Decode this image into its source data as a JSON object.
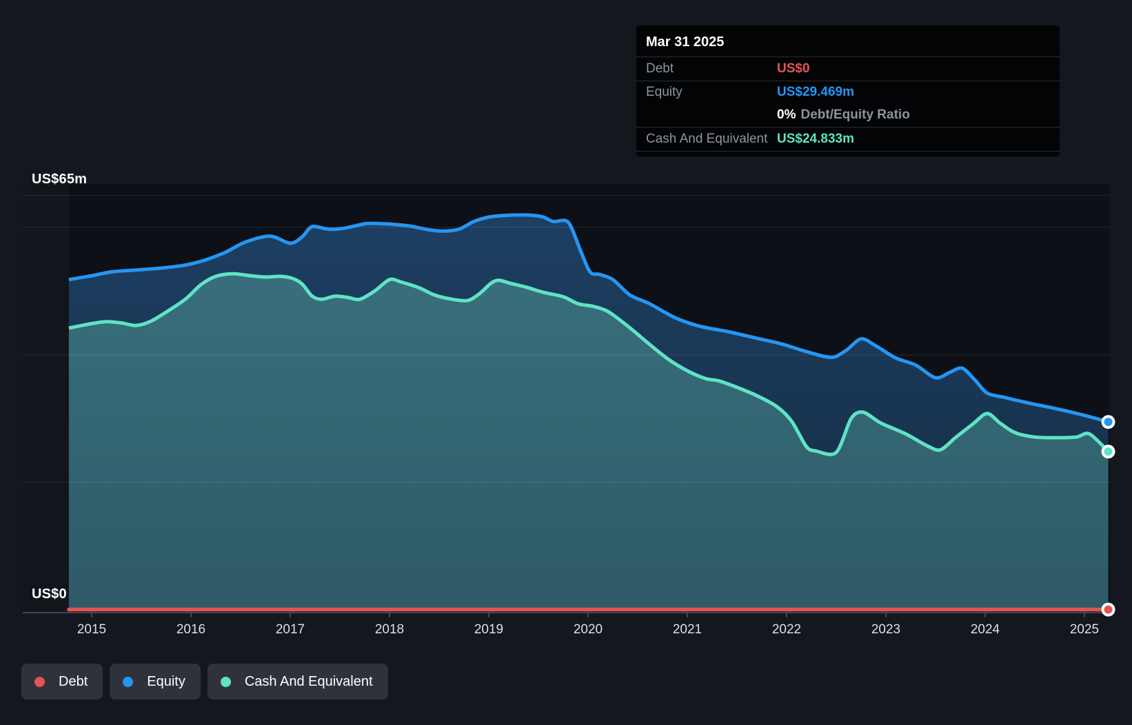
{
  "chart_data": {
    "type": "area",
    "x_axis": {
      "labels": [
        "2015",
        "2016",
        "2017",
        "2018",
        "2019",
        "2020",
        "2021",
        "2022",
        "2023",
        "2024",
        "2025"
      ]
    },
    "y_axis": {
      "max_label": "US$65m",
      "zero_label": "US$0",
      "range": [
        0,
        65
      ],
      "gridline_values": [
        65,
        60,
        40,
        20
      ]
    },
    "x_range": [
      2014.77,
      2025.24
    ],
    "series": [
      {
        "name": "Debt",
        "color": "#e25553",
        "points": [
          [
            2014.77,
            0
          ],
          [
            2025.24,
            0
          ]
        ]
      },
      {
        "name": "Equity",
        "color": "#2596f3",
        "points": [
          [
            2014.77,
            51.8
          ],
          [
            2015.0,
            52.4
          ],
          [
            2015.2,
            53.0
          ],
          [
            2015.45,
            53.3
          ],
          [
            2015.7,
            53.6
          ],
          [
            2015.95,
            54.1
          ],
          [
            2016.15,
            54.9
          ],
          [
            2016.35,
            56.1
          ],
          [
            2016.55,
            57.7
          ],
          [
            2016.8,
            58.6
          ],
          [
            2017.0,
            57.5
          ],
          [
            2017.12,
            58.5
          ],
          [
            2017.22,
            60.1
          ],
          [
            2017.38,
            59.7
          ],
          [
            2017.52,
            59.8
          ],
          [
            2017.65,
            60.2
          ],
          [
            2017.78,
            60.6
          ],
          [
            2018.0,
            60.5
          ],
          [
            2018.2,
            60.2
          ],
          [
            2018.4,
            59.6
          ],
          [
            2018.55,
            59.4
          ],
          [
            2018.7,
            59.7
          ],
          [
            2018.85,
            60.9
          ],
          [
            2019.0,
            61.6
          ],
          [
            2019.2,
            61.9
          ],
          [
            2019.42,
            61.9
          ],
          [
            2019.55,
            61.6
          ],
          [
            2019.65,
            60.9
          ],
          [
            2019.8,
            60.8
          ],
          [
            2019.92,
            56.5
          ],
          [
            2020.02,
            53.0
          ],
          [
            2020.12,
            52.6
          ],
          [
            2020.25,
            51.8
          ],
          [
            2020.42,
            49.4
          ],
          [
            2020.62,
            48.0
          ],
          [
            2020.88,
            45.8
          ],
          [
            2021.12,
            44.5
          ],
          [
            2021.42,
            43.6
          ],
          [
            2021.7,
            42.6
          ],
          [
            2021.95,
            41.7
          ],
          [
            2022.2,
            40.5
          ],
          [
            2022.45,
            39.6
          ],
          [
            2022.6,
            40.7
          ],
          [
            2022.75,
            42.5
          ],
          [
            2022.9,
            41.4
          ],
          [
            2023.1,
            39.5
          ],
          [
            2023.3,
            38.4
          ],
          [
            2023.5,
            36.4
          ],
          [
            2023.65,
            37.3
          ],
          [
            2023.77,
            37.9
          ],
          [
            2023.9,
            36.0
          ],
          [
            2024.02,
            34.0
          ],
          [
            2024.2,
            33.3
          ],
          [
            2024.45,
            32.4
          ],
          [
            2024.7,
            31.6
          ],
          [
            2024.95,
            30.7
          ],
          [
            2025.1,
            30.1
          ],
          [
            2025.24,
            29.469
          ]
        ]
      },
      {
        "name": "Cash And Equivalent",
        "color": "#5fe3c5",
        "points": [
          [
            2014.77,
            44.2
          ],
          [
            2015.0,
            44.9
          ],
          [
            2015.15,
            45.2
          ],
          [
            2015.3,
            45.0
          ],
          [
            2015.45,
            44.6
          ],
          [
            2015.6,
            45.3
          ],
          [
            2015.78,
            47.0
          ],
          [
            2015.95,
            48.8
          ],
          [
            2016.1,
            51.0
          ],
          [
            2016.25,
            52.3
          ],
          [
            2016.42,
            52.7
          ],
          [
            2016.6,
            52.4
          ],
          [
            2016.75,
            52.2
          ],
          [
            2016.9,
            52.3
          ],
          [
            2017.02,
            52.0
          ],
          [
            2017.12,
            51.1
          ],
          [
            2017.22,
            49.2
          ],
          [
            2017.32,
            48.7
          ],
          [
            2017.45,
            49.2
          ],
          [
            2017.58,
            49.0
          ],
          [
            2017.7,
            48.7
          ],
          [
            2017.85,
            50.0
          ],
          [
            2018.0,
            51.8
          ],
          [
            2018.12,
            51.4
          ],
          [
            2018.3,
            50.5
          ],
          [
            2018.45,
            49.4
          ],
          [
            2018.6,
            48.8
          ],
          [
            2018.78,
            48.5
          ],
          [
            2018.9,
            49.5
          ],
          [
            2019.02,
            51.2
          ],
          [
            2019.1,
            51.7
          ],
          [
            2019.22,
            51.2
          ],
          [
            2019.38,
            50.6
          ],
          [
            2019.55,
            49.8
          ],
          [
            2019.75,
            49.1
          ],
          [
            2019.9,
            48.0
          ],
          [
            2020.05,
            47.6
          ],
          [
            2020.2,
            46.8
          ],
          [
            2020.4,
            44.5
          ],
          [
            2020.6,
            41.9
          ],
          [
            2020.8,
            39.4
          ],
          [
            2021.0,
            37.5
          ],
          [
            2021.18,
            36.3
          ],
          [
            2021.32,
            35.9
          ],
          [
            2021.5,
            34.9
          ],
          [
            2021.7,
            33.6
          ],
          [
            2021.9,
            31.9
          ],
          [
            2022.05,
            29.6
          ],
          [
            2022.2,
            25.6
          ],
          [
            2022.3,
            24.9
          ],
          [
            2022.5,
            24.7
          ],
          [
            2022.65,
            30.0
          ],
          [
            2022.77,
            31.0
          ],
          [
            2022.95,
            29.3
          ],
          [
            2023.2,
            27.6
          ],
          [
            2023.42,
            25.7
          ],
          [
            2023.55,
            25.1
          ],
          [
            2023.7,
            27.0
          ],
          [
            2023.88,
            29.2
          ],
          [
            2024.02,
            30.8
          ],
          [
            2024.15,
            29.3
          ],
          [
            2024.3,
            27.8
          ],
          [
            2024.5,
            27.1
          ],
          [
            2024.72,
            27.0
          ],
          [
            2024.92,
            27.1
          ],
          [
            2025.05,
            27.6
          ],
          [
            2025.24,
            24.833
          ]
        ]
      }
    ]
  },
  "tooltip": {
    "date": "Mar 31 2025",
    "debt_label": "Debt",
    "debt_value": "US$0",
    "equity_label": "Equity",
    "equity_value": "US$29.469m",
    "ratio_value": "0%",
    "ratio_label": "Debt/Equity Ratio",
    "cash_label": "Cash And Equivalent",
    "cash_value": "US$24.833m"
  },
  "legend": {
    "items": [
      "Debt",
      "Equity",
      "Cash And Equivalent"
    ]
  },
  "colors": {
    "page_background": "#14171e",
    "plot_background": "#0d1016",
    "debt": "#e25553",
    "equity": "#2596f3",
    "cash": "#5fe3c5",
    "axis_line": "#42464f",
    "gridline": "rgba(255,255,255,0.07)"
  }
}
